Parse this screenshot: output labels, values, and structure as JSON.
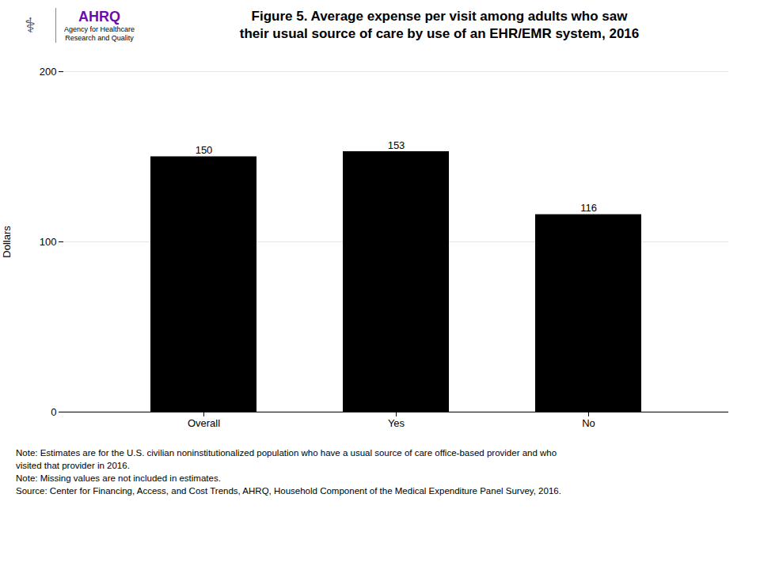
{
  "chart_data": {
    "type": "bar",
    "title": "Figure 5. Average expense per visit among adults who saw",
    "subtitle": "their usual source of care by use of an EHR/EMR system, 2016",
    "categories": [
      "Overall",
      "Yes",
      "No"
    ],
    "values": [
      150,
      153,
      116
    ],
    "ylabel": "Dollars",
    "ylim": [
      0,
      200
    ],
    "yticks": [
      0,
      100,
      200
    ],
    "grid": true,
    "data_labels": true,
    "annotations": [
      "⚕",
      "AHRQ",
      "Agency for Healthcare",
      "Research and Quality",
      "Note: Estimates are for the U.S. civilian noninstitutionalized population who have a usual source of care office-based provider and who",
      "visited that provider in 2016.",
      "Note: Missing values are not included in estimates.",
      "Source: Center for Financing, Access, and Cost Trends, AHRQ, Household Component of the Medical Expenditure Panel Survey, 2016."
    ]
  }
}
